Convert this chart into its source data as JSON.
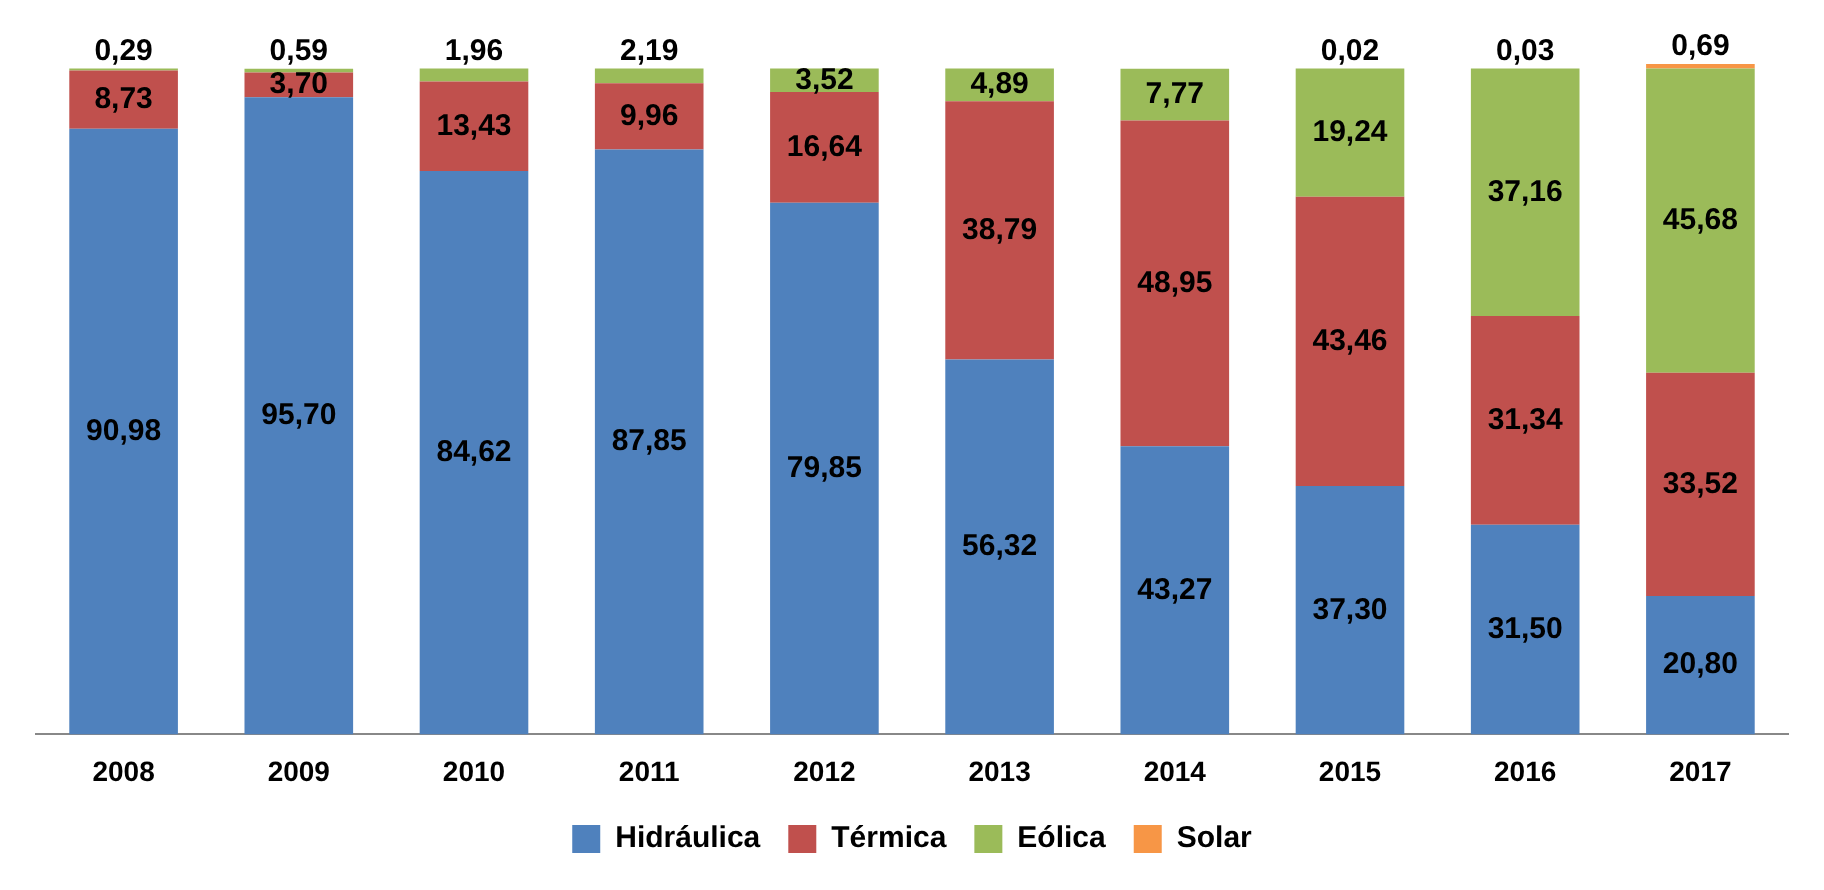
{
  "chart_data": {
    "type": "bar",
    "stacked": true,
    "categories": [
      "2008",
      "2009",
      "2010",
      "2011",
      "2012",
      "2013",
      "2014",
      "2015",
      "2016",
      "2017"
    ],
    "series": [
      {
        "name": "Hidráulica",
        "color": "#4f81bd",
        "values": [
          90.98,
          95.7,
          84.62,
          87.85,
          79.85,
          56.32,
          43.27,
          37.3,
          31.5,
          20.8
        ],
        "value_labels": [
          "90,98",
          "95,70",
          "84,62",
          "87,85",
          "79,85",
          "56,32",
          "43,27",
          "37,30",
          "31,50",
          "20,80"
        ]
      },
      {
        "name": "Térmica",
        "color": "#c0504d",
        "values": [
          8.73,
          3.7,
          13.43,
          9.96,
          16.64,
          38.79,
          48.95,
          43.46,
          31.34,
          33.52
        ],
        "value_labels": [
          "8,73",
          "3,70",
          "13,43",
          "9,96",
          "16,64",
          "38,79",
          "48,95",
          "43,46",
          "31,34",
          "33,52"
        ]
      },
      {
        "name": "Eólica",
        "color": "#9bbb59",
        "values": [
          0.29,
          0.59,
          1.96,
          2.19,
          3.52,
          4.89,
          7.77,
          19.24,
          37.16,
          45.68
        ],
        "value_labels": [
          "0,29",
          "0,59",
          "1,96",
          "2,19",
          "3,52",
          "4,89",
          "7,77",
          "19,24",
          "37,16",
          "45,68"
        ]
      },
      {
        "name": "Solar",
        "color": "#f79646",
        "values": [
          null,
          null,
          null,
          null,
          null,
          null,
          null,
          0.02,
          0.03,
          0.69
        ],
        "value_labels": [
          null,
          null,
          null,
          null,
          null,
          null,
          null,
          "0,02",
          "0,03",
          "0,69"
        ]
      }
    ],
    "tick_labels": "x",
    "grid": false,
    "legend": "bottom"
  }
}
